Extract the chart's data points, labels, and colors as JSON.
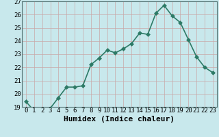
{
  "x": [
    0,
    1,
    2,
    3,
    4,
    5,
    6,
    7,
    8,
    9,
    10,
    11,
    12,
    13,
    14,
    15,
    16,
    17,
    18,
    19,
    20,
    21,
    22,
    23
  ],
  "y": [
    19.4,
    18.7,
    18.8,
    18.9,
    19.7,
    20.5,
    20.5,
    20.6,
    22.2,
    22.7,
    23.3,
    23.1,
    23.4,
    23.8,
    24.6,
    24.5,
    26.1,
    26.7,
    25.9,
    25.4,
    24.1,
    22.8,
    22.0,
    21.6
  ],
  "xlabel": "Humidex (Indice chaleur)",
  "ylim": [
    19,
    27
  ],
  "xlim": [
    -0.5,
    23.5
  ],
  "yticks": [
    19,
    20,
    21,
    22,
    23,
    24,
    25,
    26,
    27
  ],
  "xticks": [
    0,
    1,
    2,
    3,
    4,
    5,
    6,
    7,
    8,
    9,
    10,
    11,
    12,
    13,
    14,
    15,
    16,
    17,
    18,
    19,
    20,
    21,
    22,
    23
  ],
  "line_color": "#2d7a66",
  "bg_color": "#c8e8ec",
  "grid_major_color": "#c8a8a8",
  "grid_minor_color": "#d8b8b8",
  "marker_size": 3,
  "line_width": 1.2,
  "xlabel_fontsize": 8,
  "tick_fontsize": 6.5
}
